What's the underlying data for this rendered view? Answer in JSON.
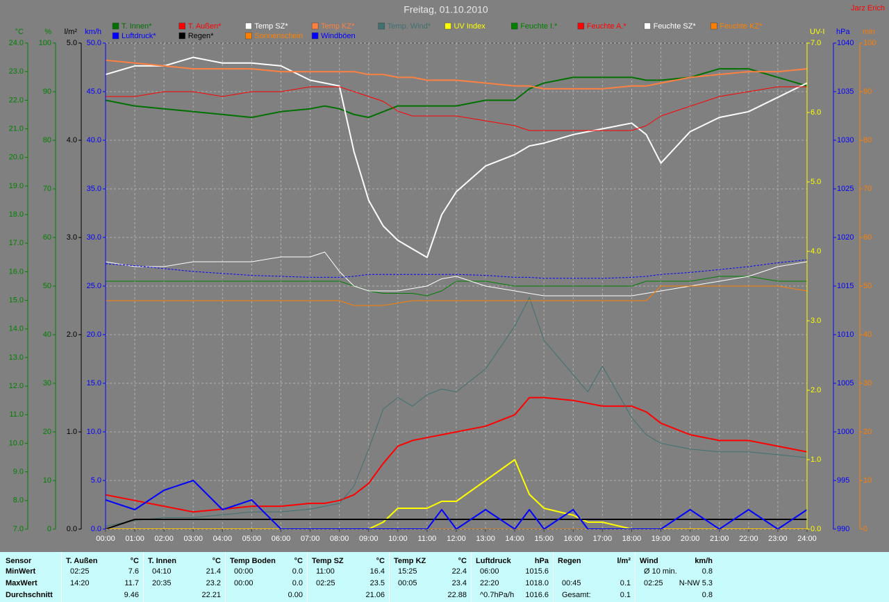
{
  "title": "Freitag, 01.10.2010",
  "author": "Jarz Erich",
  "chart_data": {
    "type": "line",
    "grid": true,
    "x": [
      0,
      1,
      2,
      3,
      4,
      5,
      6,
      7,
      7.5,
      8,
      8.5,
      9,
      9.5,
      10,
      10.5,
      11,
      11.5,
      12,
      13,
      14,
      14.5,
      15,
      16,
      16.5,
      17,
      18,
      18.5,
      19,
      20,
      21,
      22,
      23,
      24
    ],
    "xlim": [
      0,
      24
    ],
    "xticks": [
      {
        "value": 0,
        "label": "00:00"
      },
      {
        "value": 1,
        "label": "01:00"
      },
      {
        "value": 2,
        "label": "02:00"
      },
      {
        "value": 3,
        "label": "03:00"
      },
      {
        "value": 4,
        "label": "04:00"
      },
      {
        "value": 5,
        "label": "05:00"
      },
      {
        "value": 6,
        "label": "06:00"
      },
      {
        "value": 7,
        "label": "07:00"
      },
      {
        "value": 8,
        "label": "08:00"
      },
      {
        "value": 9,
        "label": "09:00"
      },
      {
        "value": 10,
        "label": "10:00"
      },
      {
        "value": 11,
        "label": "11:00"
      },
      {
        "value": 12,
        "label": "12:00"
      },
      {
        "value": 13,
        "label": "13:00"
      },
      {
        "value": 14,
        "label": "14:00"
      },
      {
        "value": 15,
        "label": "15:00"
      },
      {
        "value": 16,
        "label": "16:00"
      },
      {
        "value": 17,
        "label": "17:00"
      },
      {
        "value": 18,
        "label": "18:00"
      },
      {
        "value": 19,
        "label": "19:00"
      },
      {
        "value": 20,
        "label": "20:00"
      },
      {
        "value": 21,
        "label": "21:00"
      },
      {
        "value": 22,
        "label": "22:00"
      },
      {
        "value": 23,
        "label": "23:00"
      },
      {
        "value": 24,
        "label": "24:00"
      }
    ],
    "axes": [
      {
        "title": "°C",
        "side": "left",
        "color": "#008000",
        "lim": [
          7,
          24
        ],
        "ticks": [
          {
            "value": 7,
            "label": "7.0"
          },
          {
            "value": 8,
            "label": "8.0"
          },
          {
            "value": 9,
            "label": "9.0"
          },
          {
            "value": 10,
            "label": "10.0"
          },
          {
            "value": 11,
            "label": "11.0"
          },
          {
            "value": 12,
            "label": "12.0"
          },
          {
            "value": 13,
            "label": "13.0"
          },
          {
            "value": 14,
            "label": "14.0"
          },
          {
            "value": 15,
            "label": "15.0"
          },
          {
            "value": 16,
            "label": "16.0"
          },
          {
            "value": 17,
            "label": "17.0"
          },
          {
            "value": 18,
            "label": "18.0"
          },
          {
            "value": 19,
            "label": "19.0"
          },
          {
            "value": 20,
            "label": "20.0"
          },
          {
            "value": 21,
            "label": "21.0"
          },
          {
            "value": 22,
            "label": "22.0"
          },
          {
            "value": 23,
            "label": "23.0"
          },
          {
            "value": 24,
            "label": "24.0"
          }
        ]
      },
      {
        "title": "%",
        "side": "left",
        "color": "#008000",
        "lim": [
          0,
          100
        ],
        "ticks": [
          0,
          10,
          20,
          30,
          40,
          50,
          60,
          70,
          80,
          90,
          100
        ]
      },
      {
        "title": "l/m²",
        "side": "left",
        "color": "#000000",
        "lim": [
          0,
          5
        ],
        "ticks": [
          {
            "value": 0,
            "label": "0.0"
          },
          {
            "value": 1,
            "label": "1.0"
          },
          {
            "value": 2,
            "label": "2.0"
          },
          {
            "value": 3,
            "label": "3.0"
          },
          {
            "value": 4,
            "label": "4.0"
          },
          {
            "value": 5,
            "label": "5.0"
          }
        ]
      },
      {
        "title": "km/h",
        "side": "left",
        "color": "#0000ff",
        "lim": [
          0,
          50
        ],
        "ticks": [
          {
            "value": 0,
            "label": "0.0"
          },
          {
            "value": 5,
            "label": "5.0"
          },
          {
            "value": 10,
            "label": "10.0"
          },
          {
            "value": 15,
            "label": "15.0"
          },
          {
            "value": 20,
            "label": "20.0"
          },
          {
            "value": 25,
            "label": "25.0"
          },
          {
            "value": 30,
            "label": "30.0"
          },
          {
            "value": 35,
            "label": "35.0"
          },
          {
            "value": 40,
            "label": "40.0"
          },
          {
            "value": 45,
            "label": "45.0"
          },
          {
            "value": 50,
            "label": "50.0"
          }
        ]
      },
      {
        "title": "UV-I",
        "side": "right",
        "color": "#ffff00",
        "lim": [
          0,
          7
        ],
        "ticks": [
          {
            "value": 0,
            "label": "0.0"
          },
          {
            "value": 1,
            "label": "1.0"
          },
          {
            "value": 2,
            "label": "2.0"
          },
          {
            "value": 3,
            "label": "3.0"
          },
          {
            "value": 4,
            "label": "4.0"
          },
          {
            "value": 5,
            "label": "5.0"
          },
          {
            "value": 6,
            "label": "6.0"
          },
          {
            "value": 7,
            "label": "7.0"
          }
        ]
      },
      {
        "title": "hPa",
        "side": "right",
        "color": "#0000ff",
        "lim": [
          990,
          1040
        ],
        "ticks": [
          990,
          995,
          1000,
          1005,
          1010,
          1015,
          1020,
          1025,
          1030,
          1035,
          1040
        ]
      },
      {
        "title": "min",
        "side": "right",
        "color": "#ff8000",
        "lim": [
          0,
          100
        ],
        "ticks": [
          0,
          10,
          20,
          30,
          40,
          50,
          60,
          70,
          80,
          90,
          100
        ]
      }
    ],
    "series": [
      {
        "name": "T. Innen*",
        "color": "#007000",
        "axis": 0,
        "width": 2,
        "values": [
          22.0,
          21.8,
          21.7,
          21.6,
          21.5,
          21.4,
          21.6,
          21.7,
          21.8,
          21.7,
          21.5,
          21.4,
          21.6,
          21.8,
          21.8,
          21.8,
          21.8,
          21.8,
          22.0,
          22.0,
          22.4,
          22.6,
          22.8,
          22.8,
          22.8,
          22.8,
          22.7,
          22.7,
          22.8,
          23.1,
          23.1,
          22.8,
          22.5
        ]
      },
      {
        "name": "T. Außen*",
        "color": "#ff0000",
        "axis": 0,
        "width": 2,
        "values": [
          8.2,
          8.0,
          7.8,
          7.6,
          7.7,
          7.8,
          7.8,
          7.9,
          7.9,
          8.0,
          8.2,
          8.6,
          9.3,
          9.9,
          10.1,
          10.2,
          10.3,
          10.4,
          10.6,
          11.0,
          11.6,
          11.6,
          11.5,
          11.4,
          11.3,
          11.3,
          11.1,
          10.7,
          10.3,
          10.1,
          10.1,
          9.9,
          9.7
        ]
      },
      {
        "name": "Temp SZ*",
        "color": "#ffffff",
        "axis": 0,
        "width": 2,
        "values": [
          22.9,
          23.2,
          23.2,
          23.5,
          23.3,
          23.3,
          23.2,
          22.7,
          22.6,
          22.5,
          20.2,
          18.5,
          17.6,
          17.1,
          16.8,
          16.5,
          18.0,
          18.8,
          19.7,
          20.1,
          20.4,
          20.5,
          20.8,
          20.9,
          21.0,
          21.2,
          20.8,
          19.8,
          20.9,
          21.4,
          21.6,
          22.1,
          22.6
        ]
      },
      {
        "name": "Temp KZ*",
        "color": "#ff8040",
        "axis": 0,
        "width": 2,
        "values": [
          23.4,
          23.3,
          23.2,
          23.1,
          23.1,
          23.1,
          23.0,
          23.0,
          23.0,
          23.0,
          23.0,
          22.9,
          22.9,
          22.8,
          22.8,
          22.7,
          22.7,
          22.7,
          22.6,
          22.5,
          22.5,
          22.4,
          22.4,
          22.4,
          22.4,
          22.5,
          22.5,
          22.6,
          22.8,
          22.9,
          23.0,
          23.0,
          23.1
        ]
      },
      {
        "name": "Temp. Wind*",
        "color": "#407070",
        "axis": 0,
        "width": 1,
        "values": [
          7.1,
          7.3,
          7.4,
          7.4,
          7.5,
          7.6,
          7.6,
          7.7,
          7.8,
          7.9,
          8.5,
          9.8,
          11.2,
          11.6,
          11.3,
          11.7,
          11.9,
          11.8,
          12.6,
          14.1,
          15.1,
          13.6,
          12.4,
          11.8,
          12.7,
          10.9,
          10.3,
          10.0,
          9.8,
          9.7,
          9.7,
          9.6,
          9.5
        ]
      },
      {
        "name": "UV Index",
        "color": "#ffff00",
        "axis": 4,
        "width": 2,
        "values": [
          0,
          0,
          0,
          0,
          0,
          0,
          0,
          0,
          0,
          0,
          0,
          0,
          0.1,
          0.3,
          0.3,
          0.3,
          0.4,
          0.4,
          0.7,
          1.0,
          0.5,
          0.3,
          0.2,
          0.1,
          0.1,
          0,
          0,
          0,
          0,
          0,
          0,
          0,
          0
        ]
      },
      {
        "name": "Feuchte I.*",
        "color": "#008000",
        "axis": 1,
        "width": 1,
        "values": [
          51,
          51,
          51,
          51,
          51,
          51,
          51,
          51,
          51,
          51,
          50,
          49,
          48.5,
          48.5,
          48.5,
          48,
          49,
          51,
          51,
          50,
          50,
          50,
          50,
          50,
          50,
          50,
          51,
          51,
          51,
          52,
          52,
          51,
          51
        ]
      },
      {
        "name": "Feuchte A.*",
        "color": "#ff0000",
        "axis": 1,
        "width": 1,
        "values": [
          89,
          89,
          90,
          90,
          89,
          90,
          90,
          91,
          91,
          91,
          90,
          89,
          88,
          86,
          85,
          85,
          85,
          85,
          84,
          83,
          82,
          82,
          82,
          82,
          82,
          82,
          83,
          85,
          87,
          89,
          90,
          91,
          91
        ]
      },
      {
        "name": "Feuchte SZ*",
        "color": "#ffffff",
        "axis": 1,
        "width": 1,
        "values": [
          55,
          54,
          54,
          55,
          55,
          55,
          56,
          56,
          57,
          53,
          50,
          49,
          49,
          49,
          49.5,
          50,
          51.5,
          52,
          50,
          49,
          48.5,
          48,
          48,
          48,
          48,
          48,
          48.5,
          49,
          50,
          51,
          52,
          54,
          55
        ]
      },
      {
        "name": "Feuchte KZ*",
        "color": "#ff8000",
        "axis": 1,
        "width": 1,
        "values": [
          47,
          47,
          47,
          47,
          47,
          47,
          47,
          47,
          47,
          47,
          46,
          46,
          46,
          46.5,
          47,
          47,
          47,
          47,
          47,
          47,
          47,
          47,
          47,
          47,
          47,
          47,
          47,
          50,
          50,
          50,
          50,
          50,
          49
        ]
      },
      {
        "name": "Luftdruck*",
        "color": "#0000ff",
        "axis": 5,
        "width": 1,
        "dash": true,
        "values": [
          1017.3,
          1017.1,
          1016.8,
          1016.5,
          1016.3,
          1016.1,
          1016.0,
          1015.9,
          1015.9,
          1015.9,
          1016.0,
          1016.2,
          1016.2,
          1016.2,
          1016.2,
          1016.2,
          1016.2,
          1016.2,
          1016.1,
          1015.9,
          1015.9,
          1015.8,
          1015.8,
          1015.8,
          1015.8,
          1015.9,
          1016.0,
          1016.2,
          1016.4,
          1016.7,
          1017.0,
          1017.4,
          1017.7
        ]
      },
      {
        "name": "Regen*",
        "color": "#000000",
        "axis": 2,
        "width": 2,
        "values": [
          0,
          0.1,
          0.1,
          0.1,
          0.1,
          0.1,
          0.1,
          0.1,
          0.1,
          0.1,
          0.1,
          0.1,
          0.1,
          0.1,
          0.1,
          0.1,
          0.1,
          0.1,
          0.1,
          0.1,
          0.1,
          0.1,
          0.1,
          0.1,
          0.1,
          0.1,
          0.1,
          0.1,
          0.1,
          0.1,
          0.1,
          0.1,
          0.1
        ]
      },
      {
        "name": "Sonnenschein",
        "color": "#ff8000",
        "axis": 6,
        "width": 1,
        "values": [
          0,
          0,
          0,
          0,
          0,
          0,
          0,
          0,
          0,
          0,
          0,
          0,
          0,
          0,
          0,
          0,
          0,
          0,
          0,
          0,
          0,
          0,
          0,
          0,
          0,
          0,
          0,
          0,
          0,
          0,
          0,
          0,
          0
        ]
      },
      {
        "name": "Windböen",
        "color": "#0000ff",
        "axis": 3,
        "width": 2,
        "values": [
          3,
          2,
          4,
          5,
          2,
          3,
          0,
          0,
          0,
          0,
          0,
          0,
          0,
          0,
          0,
          0,
          2,
          0,
          2,
          0,
          2,
          0,
          2,
          0,
          0,
          0,
          0,
          0,
          2,
          0,
          2,
          0,
          2
        ]
      }
    ]
  },
  "table": {
    "corner": "Sensor",
    "groups": [
      {
        "name": "T. Außen",
        "unit": "°C"
      },
      {
        "name": "T. Innen",
        "unit": "°C"
      },
      {
        "name": "Temp Boden",
        "unit": "°C"
      },
      {
        "name": "Temp SZ",
        "unit": "°C"
      },
      {
        "name": "Temp KZ",
        "unit": "°C"
      },
      {
        "name": "Luftdruck",
        "unit": "hPa"
      },
      {
        "name": "Regen",
        "unit": "l/m²"
      },
      {
        "name": "Wind",
        "unit": "km/h"
      }
    ],
    "rows": [
      {
        "label": "MinWert",
        "cells": [
          [
            "02:25",
            "7.6"
          ],
          [
            "04:10",
            "21.4"
          ],
          [
            "00:00",
            "0.0"
          ],
          [
            "11:00",
            "16.4"
          ],
          [
            "15:25",
            "22.4"
          ],
          [
            "06:00",
            "1015.6"
          ],
          [
            null,
            null
          ],
          [
            "Ø 10 min.",
            "0.8"
          ]
        ]
      },
      {
        "label": "MaxWert",
        "cells": [
          [
            "14:20",
            "11.7"
          ],
          [
            "20:35",
            "23.2"
          ],
          [
            "00:00",
            "0.0"
          ],
          [
            "02:25",
            "23.5"
          ],
          [
            "00:05",
            "23.4"
          ],
          [
            "22:20",
            "1018.0"
          ],
          [
            "00:45",
            "0.1"
          ],
          [
            "02:25",
            "N-NW 5.3"
          ]
        ]
      },
      {
        "label": "Durchschnitt",
        "cells": [
          [
            null,
            "9.46"
          ],
          [
            null,
            "22.21"
          ],
          [
            null,
            "0.00"
          ],
          [
            null,
            "21.06"
          ],
          [
            null,
            "22.88"
          ],
          [
            "^0.7hPa/h",
            "1016.6"
          ],
          [
            "Gesamt:",
            "0.1"
          ],
          [
            null,
            "0.8"
          ]
        ]
      }
    ]
  }
}
